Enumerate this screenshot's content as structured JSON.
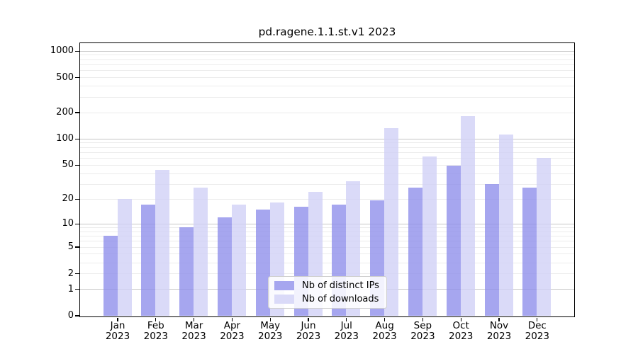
{
  "chart_data": {
    "type": "bar",
    "title": "pd.ragene.1.1.st.v1 2023",
    "x_axis": {
      "categories": [
        "Jan",
        "Feb",
        "Mar",
        "Apr",
        "May",
        "Jun",
        "Jul",
        "Aug",
        "Sep",
        "Oct",
        "Nov",
        "Dec"
      ],
      "tick_second_line": "2023"
    },
    "y_axis": {
      "ticks": [
        0,
        1,
        2,
        5,
        10,
        20,
        50,
        100,
        200,
        500,
        1000
      ],
      "scale": "quasi-log (log(1+v), 0 at baseline)",
      "grid": true,
      "major_grid_ticks": [
        1,
        10,
        100,
        1000
      ]
    },
    "series": [
      {
        "name": "Nb of distinct IPs",
        "color": "#a6a6ef",
        "bar_rgba": "rgba(144,144,235,0.8)",
        "values": [
          7,
          17,
          9,
          12,
          15,
          16,
          17,
          19,
          27,
          49,
          30,
          27
        ]
      },
      {
        "name": "Nb of downloads",
        "color": "#dadaf8",
        "bar_rgba": "rgba(209,209,246,0.8)",
        "values": [
          20,
          44,
          27,
          17,
          18,
          24,
          32,
          132,
          62,
          180,
          112,
          60
        ]
      }
    ],
    "legend": {
      "position": "lower center"
    },
    "colors": {
      "major_grid": "#c6c6c6",
      "minor_grid": "#ececec",
      "axis": "#000000",
      "background": "#ffffff"
    }
  }
}
